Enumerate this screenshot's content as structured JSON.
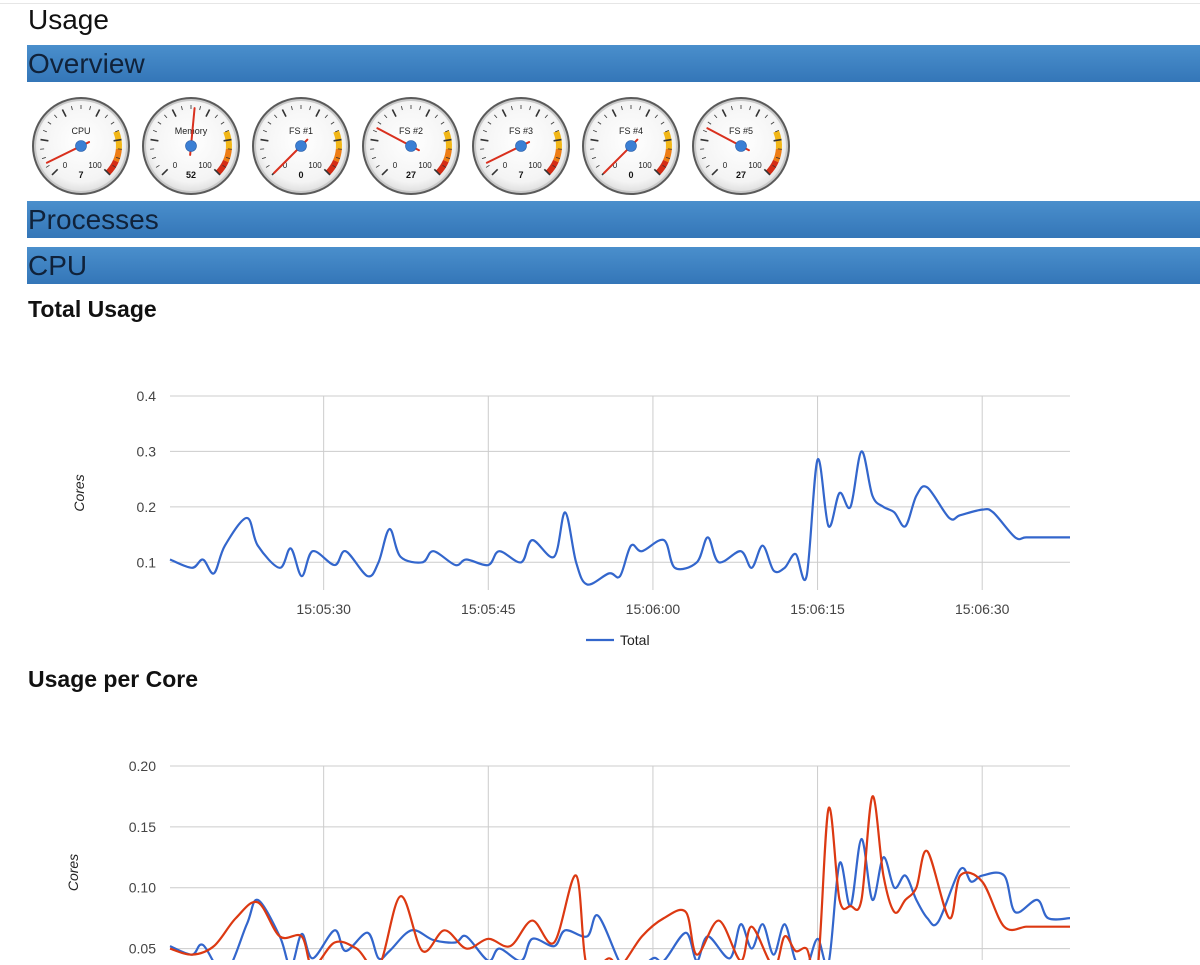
{
  "page": {
    "title": "Usage"
  },
  "sections": {
    "overview": "Overview",
    "processes": "Processes",
    "cpu": "CPU"
  },
  "gauges": [
    {
      "label": "CPU",
      "value": 7,
      "min": 0,
      "max": 100
    },
    {
      "label": "Memory",
      "value": 52,
      "min": 0,
      "max": 100
    },
    {
      "label": "FS #1",
      "value": 0,
      "min": 0,
      "max": 100
    },
    {
      "label": "FS #2",
      "value": 27,
      "min": 0,
      "max": 100
    },
    {
      "label": "FS #3",
      "value": 7,
      "min": 0,
      "max": 100
    },
    {
      "label": "FS #4",
      "value": 0,
      "min": 0,
      "max": 100
    },
    {
      "label": "FS #5",
      "value": 27,
      "min": 0,
      "max": 100
    }
  ],
  "gauge_colors": {
    "needle": "#d9301e",
    "hub": "#3b7fd4",
    "yellow": "#f2b718",
    "orange": "#ee7c12",
    "red": "#d42d16"
  },
  "cpu": {
    "total_title": "Total Usage",
    "per_core_title": "Usage per Core"
  },
  "chart_data": [
    {
      "type": "line",
      "title": "Total Usage",
      "ylabel": "Cores",
      "ylim": [
        0.05,
        0.4
      ],
      "yticks": [
        0.1,
        0.2,
        0.3,
        0.4
      ],
      "xlim": [
        "15:05:16",
        "15:06:38"
      ],
      "xticks": [
        "15:05:30",
        "15:05:45",
        "15:06:00",
        "15:06:15",
        "15:06:30"
      ],
      "legend_position": "bottom",
      "grid": true,
      "series": [
        {
          "name": "Total",
          "color": "#3366cc",
          "x": [
            "15:05:16",
            "15:05:18",
            "15:05:19",
            "15:05:20",
            "15:05:21",
            "15:05:23",
            "15:05:24",
            "15:05:26",
            "15:05:27",
            "15:05:28",
            "15:05:29",
            "15:05:31",
            "15:05:32",
            "15:05:34",
            "15:05:35",
            "15:05:36",
            "15:05:37",
            "15:05:39",
            "15:05:40",
            "15:05:42",
            "15:05:43",
            "15:05:45",
            "15:05:46",
            "15:05:48",
            "15:05:49",
            "15:05:51",
            "15:05:52",
            "15:05:53",
            "15:05:54",
            "15:05:56",
            "15:05:57",
            "15:05:58",
            "15:05:59",
            "15:06:01",
            "15:06:02",
            "15:06:04",
            "15:06:05",
            "15:06:06",
            "15:06:08",
            "15:06:09",
            "15:06:10",
            "15:06:11",
            "15:06:12",
            "15:06:13",
            "15:06:14",
            "15:06:15",
            "15:06:16",
            "15:06:17",
            "15:06:18",
            "15:06:19",
            "15:06:20",
            "15:06:21",
            "15:06:22",
            "15:06:23",
            "15:06:24",
            "15:06:25",
            "15:06:27",
            "15:06:28",
            "15:06:30",
            "15:06:31",
            "15:06:33",
            "15:06:34",
            "15:06:36",
            "15:06:38"
          ],
          "y": [
            0.105,
            0.09,
            0.105,
            0.08,
            0.13,
            0.18,
            0.13,
            0.09,
            0.125,
            0.075,
            0.12,
            0.095,
            0.12,
            0.075,
            0.1,
            0.16,
            0.11,
            0.1,
            0.12,
            0.095,
            0.105,
            0.095,
            0.12,
            0.1,
            0.14,
            0.11,
            0.19,
            0.1,
            0.06,
            0.08,
            0.075,
            0.13,
            0.12,
            0.14,
            0.09,
            0.1,
            0.145,
            0.1,
            0.12,
            0.09,
            0.13,
            0.085,
            0.09,
            0.115,
            0.075,
            0.285,
            0.165,
            0.225,
            0.2,
            0.3,
            0.22,
            0.2,
            0.19,
            0.165,
            0.22,
            0.235,
            0.18,
            0.185,
            0.195,
            0.19,
            0.145,
            0.145,
            0.145,
            0.145
          ]
        }
      ]
    },
    {
      "type": "line",
      "title": "Usage per Core",
      "ylabel": "Cores",
      "ylim": [
        0.025,
        0.2
      ],
      "yticks": [
        0.05,
        0.1,
        0.15,
        0.2
      ],
      "xlim": [
        "15:05:16",
        "15:06:38"
      ],
      "grid": true,
      "series": [
        {
          "name": "",
          "color": "#3366cc",
          "x": [
            "15:05:16",
            "15:05:18",
            "15:05:19",
            "15:05:21",
            "15:05:23",
            "15:05:24",
            "15:05:26",
            "15:05:27",
            "15:05:28",
            "15:05:29",
            "15:05:31",
            "15:05:32",
            "15:05:34",
            "15:05:35",
            "15:05:36",
            "15:05:38",
            "15:05:40",
            "15:05:42",
            "15:05:43",
            "15:05:45",
            "15:05:46",
            "15:05:48",
            "15:05:49",
            "15:05:51",
            "15:05:52",
            "15:05:54",
            "15:05:55",
            "15:05:57",
            "15:05:58",
            "15:06:00",
            "15:06:01",
            "15:06:03",
            "15:06:04",
            "15:06:05",
            "15:06:07",
            "15:06:08",
            "15:06:09",
            "15:06:10",
            "15:06:11",
            "15:06:12",
            "15:06:13",
            "15:06:14",
            "15:06:15",
            "15:06:16",
            "15:06:17",
            "15:06:18",
            "15:06:19",
            "15:06:20",
            "15:06:21",
            "15:06:22",
            "15:06:23",
            "15:06:24",
            "15:06:25",
            "15:06:26",
            "15:06:28",
            "15:06:29",
            "15:06:30",
            "15:06:32",
            "15:06:33",
            "15:06:35",
            "15:06:36",
            "15:06:38"
          ],
          "y": [
            0.052,
            0.045,
            0.053,
            0.03,
            0.07,
            0.09,
            0.06,
            0.035,
            0.062,
            0.042,
            0.065,
            0.048,
            0.063,
            0.042,
            0.048,
            0.065,
            0.057,
            0.055,
            0.06,
            0.04,
            0.05,
            0.04,
            0.058,
            0.052,
            0.065,
            0.06,
            0.077,
            0.038,
            0.028,
            0.042,
            0.04,
            0.063,
            0.04,
            0.06,
            0.042,
            0.07,
            0.05,
            0.07,
            0.045,
            0.07,
            0.04,
            0.035,
            0.058,
            0.038,
            0.12,
            0.085,
            0.14,
            0.09,
            0.125,
            0.1,
            0.11,
            0.09,
            0.075,
            0.072,
            0.115,
            0.105,
            0.11,
            0.11,
            0.08,
            0.09,
            0.075,
            0.075
          ]
        },
        {
          "name": "",
          "color": "#dc3912",
          "x": [
            "15:05:16",
            "15:05:18",
            "15:05:20",
            "15:05:22",
            "15:05:24",
            "15:05:26",
            "15:05:28",
            "15:05:29",
            "15:05:31",
            "15:05:33",
            "15:05:35",
            "15:05:37",
            "15:05:39",
            "15:05:41",
            "15:05:43",
            "15:05:45",
            "15:05:47",
            "15:05:49",
            "15:05:51",
            "15:05:53",
            "15:05:54",
            "15:05:56",
            "15:05:57",
            "15:05:59",
            "15:06:01",
            "15:06:03",
            "15:06:04",
            "15:06:06",
            "15:06:08",
            "15:06:09",
            "15:06:11",
            "15:06:12",
            "15:06:13",
            "15:06:14",
            "15:06:15",
            "15:06:16",
            "15:06:17",
            "15:06:18",
            "15:06:19",
            "15:06:20",
            "15:06:21",
            "15:06:22",
            "15:06:23",
            "15:06:24",
            "15:06:25",
            "15:06:27",
            "15:06:28",
            "15:06:30",
            "15:06:32",
            "15:06:34",
            "15:06:35",
            "15:06:36",
            "15:06:38"
          ],
          "y": [
            0.05,
            0.045,
            0.052,
            0.075,
            0.088,
            0.06,
            0.06,
            0.035,
            0.055,
            0.05,
            0.035,
            0.093,
            0.048,
            0.065,
            0.05,
            0.058,
            0.052,
            0.073,
            0.055,
            0.11,
            0.035,
            0.042,
            0.035,
            0.06,
            0.075,
            0.08,
            0.045,
            0.073,
            0.04,
            0.068,
            0.035,
            0.06,
            0.048,
            0.05,
            0.033,
            0.165,
            0.09,
            0.085,
            0.09,
            0.175,
            0.11,
            0.08,
            0.09,
            0.1,
            0.13,
            0.075,
            0.11,
            0.105,
            0.068,
            0.068,
            0.068,
            0.068,
            0.068
          ]
        }
      ]
    }
  ]
}
